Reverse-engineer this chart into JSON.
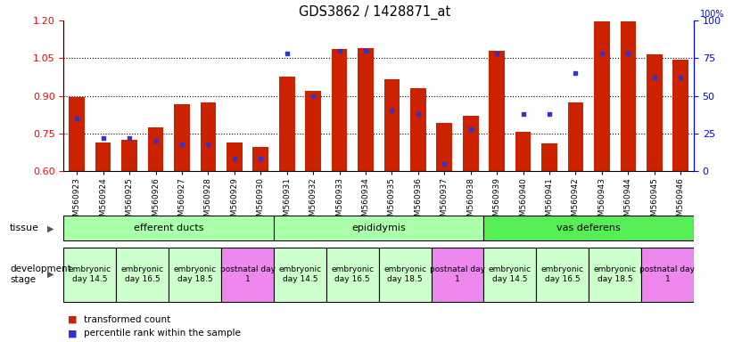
{
  "title": "GDS3862 / 1428871_at",
  "samples": [
    "GSM560923",
    "GSM560924",
    "GSM560925",
    "GSM560926",
    "GSM560927",
    "GSM560928",
    "GSM560929",
    "GSM560930",
    "GSM560931",
    "GSM560932",
    "GSM560933",
    "GSM560934",
    "GSM560935",
    "GSM560936",
    "GSM560937",
    "GSM560938",
    "GSM560939",
    "GSM560940",
    "GSM560941",
    "GSM560942",
    "GSM560943",
    "GSM560944",
    "GSM560945",
    "GSM560946"
  ],
  "transformed_count": [
    0.895,
    0.715,
    0.725,
    0.775,
    0.865,
    0.875,
    0.715,
    0.695,
    0.975,
    0.92,
    1.085,
    1.09,
    0.965,
    0.93,
    0.79,
    0.82,
    1.08,
    0.755,
    0.71,
    0.875,
    1.195,
    1.195,
    1.065,
    1.045
  ],
  "percentile_rank": [
    35,
    22,
    22,
    20,
    18,
    18,
    8,
    8,
    78,
    50,
    80,
    80,
    40,
    38,
    5,
    28,
    78,
    38,
    38,
    65,
    78,
    78,
    62,
    62
  ],
  "ylim_left": [
    0.6,
    1.2
  ],
  "ylim_right": [
    0,
    100
  ],
  "yticks_left": [
    0.6,
    0.75,
    0.9,
    1.05,
    1.2
  ],
  "yticks_right": [
    0,
    25,
    50,
    75,
    100
  ],
  "bar_color": "#cc2200",
  "percentile_color": "#3333cc",
  "baseline": 0.6,
  "tissue_groups": [
    {
      "label": "efferent ducts",
      "start": 0,
      "end": 7,
      "color": "#aaffaa"
    },
    {
      "label": "epididymis",
      "start": 8,
      "end": 15,
      "color": "#aaffaa"
    },
    {
      "label": "vas deferens",
      "start": 16,
      "end": 23,
      "color": "#55ee55"
    }
  ],
  "dev_stage_groups": [
    {
      "label": "embryonic\nday 14.5",
      "start": 0,
      "end": 1,
      "color": "#ccffcc"
    },
    {
      "label": "embryonic\nday 16.5",
      "start": 2,
      "end": 3,
      "color": "#ccffcc"
    },
    {
      "label": "embryonic\nday 18.5",
      "start": 4,
      "end": 5,
      "color": "#ccffcc"
    },
    {
      "label": "postnatal day\n1",
      "start": 6,
      "end": 7,
      "color": "#ee88ee"
    },
    {
      "label": "embryonic\nday 14.5",
      "start": 8,
      "end": 9,
      "color": "#ccffcc"
    },
    {
      "label": "embryonic\nday 16.5",
      "start": 10,
      "end": 11,
      "color": "#ccffcc"
    },
    {
      "label": "embryonic\nday 18.5",
      "start": 12,
      "end": 13,
      "color": "#ccffcc"
    },
    {
      "label": "postnatal day\n1",
      "start": 14,
      "end": 15,
      "color": "#ee88ee"
    },
    {
      "label": "embryonic\nday 14.5",
      "start": 16,
      "end": 17,
      "color": "#ccffcc"
    },
    {
      "label": "embryonic\nday 16.5",
      "start": 18,
      "end": 19,
      "color": "#ccffcc"
    },
    {
      "label": "embryonic\nday 18.5",
      "start": 20,
      "end": 21,
      "color": "#ccffcc"
    },
    {
      "label": "postnatal day\n1",
      "start": 22,
      "end": 23,
      "color": "#ee88ee"
    }
  ],
  "legend_items": [
    {
      "color": "#cc2200",
      "label": "transformed count"
    },
    {
      "color": "#3333cc",
      "label": "percentile rank within the sample"
    }
  ]
}
